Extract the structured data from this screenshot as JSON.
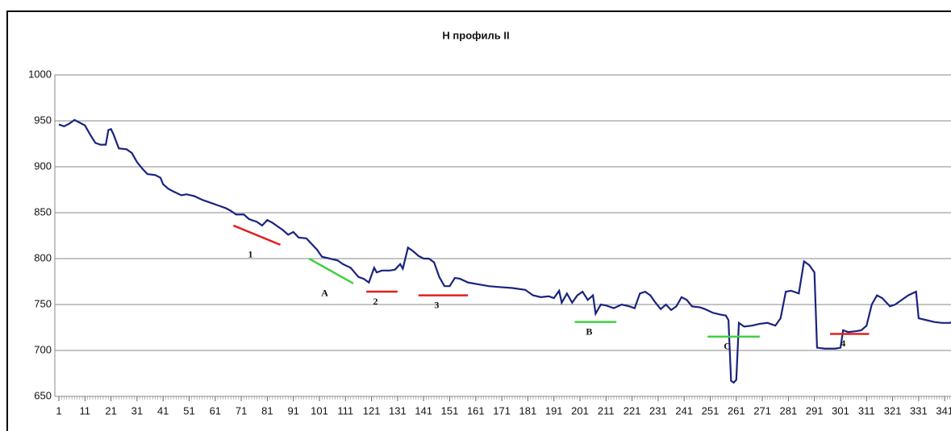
{
  "chart_data": {
    "type": "line",
    "title": "Н профиль II",
    "xlim": [
      1,
      345
    ],
    "xticks": [
      1,
      11,
      21,
      31,
      41,
      51,
      61,
      71,
      81,
      91,
      101,
      111,
      121,
      131,
      141,
      151,
      161,
      171,
      181,
      191,
      201,
      211,
      221,
      231,
      241,
      251,
      261,
      271,
      281,
      291,
      301,
      311,
      321,
      331,
      341
    ],
    "ylim": [
      650,
      1000
    ],
    "yticks": [
      650,
      700,
      750,
      800,
      850,
      900,
      950,
      1000
    ],
    "grid": true,
    "series": [
      {
        "color": "#1a237e",
        "x": [
          1,
          3,
          5,
          7,
          9,
          11,
          13,
          15,
          17,
          19,
          20,
          21,
          22,
          24,
          27,
          29,
          31,
          33,
          35,
          38,
          40,
          41,
          43,
          45,
          48,
          50,
          53,
          56,
          59,
          62,
          65,
          67,
          69,
          72,
          74,
          77,
          79,
          81,
          83,
          85,
          87,
          89,
          91,
          93,
          96,
          98,
          100,
          102,
          105,
          108,
          110,
          113,
          116,
          118,
          120,
          122,
          123,
          125,
          128,
          130,
          132,
          133,
          135,
          137,
          139,
          141,
          143,
          145,
          147,
          149,
          151,
          153,
          155,
          158,
          162,
          166,
          170,
          175,
          180,
          183,
          186,
          189,
          191,
          193,
          194,
          196,
          198,
          200,
          202,
          204,
          206,
          207,
          209,
          211,
          214,
          217,
          220,
          222,
          224,
          226,
          228,
          230,
          232,
          234,
          236,
          238,
          240,
          242,
          244,
          247,
          249,
          252,
          255,
          257,
          258,
          259,
          260,
          261,
          262,
          264,
          267,
          270,
          273,
          276,
          278,
          280,
          282,
          285,
          287,
          289,
          291,
          292,
          295,
          299,
          301,
          302,
          304,
          307,
          309,
          311,
          313,
          315,
          317,
          320,
          322,
          325,
          327,
          330,
          331,
          334,
          337,
          340,
          343,
          345
        ],
        "values": [
          946,
          944,
          947,
          951,
          948,
          945,
          935,
          926,
          924,
          924,
          940,
          941,
          935,
          920,
          919,
          915,
          905,
          898,
          892,
          891,
          888,
          881,
          876,
          873,
          869,
          870,
          868,
          864,
          861,
          858,
          855,
          852,
          848,
          848,
          843,
          840,
          836,
          842,
          839,
          835,
          831,
          826,
          829,
          823,
          822,
          816,
          810,
          802,
          800,
          798,
          794,
          790,
          780,
          778,
          774,
          790,
          785,
          787,
          787,
          788,
          794,
          789,
          812,
          808,
          803,
          800,
          800,
          796,
          780,
          770,
          770,
          779,
          778,
          774,
          772,
          770,
          769,
          768,
          766,
          760,
          758,
          759,
          757,
          765,
          752,
          762,
          752,
          760,
          764,
          755,
          760,
          740,
          750,
          749,
          746,
          750,
          748,
          746,
          762,
          764,
          760,
          752,
          745,
          750,
          744,
          748,
          758,
          755,
          748,
          747,
          745,
          741,
          739,
          738,
          733,
          667,
          665,
          668,
          730,
          726,
          727,
          729,
          730,
          727,
          735,
          764,
          765,
          762,
          797,
          793,
          785,
          703,
          702,
          702,
          703,
          722,
          720,
          721,
          722,
          727,
          750,
          760,
          757,
          748,
          750,
          756,
          760,
          764,
          735,
          733,
          731,
          730,
          730,
          733
        ]
      }
    ],
    "annotations": [
      {
        "label": "1",
        "color": "#e02020",
        "x": [
          68,
          86
        ],
        "y": [
          836,
          815
        ]
      },
      {
        "label": "A",
        "color": "#40d040",
        "x": [
          97,
          114
        ],
        "y": [
          800,
          773
        ]
      },
      {
        "label": "2",
        "color": "#e02020",
        "x": [
          119,
          131
        ],
        "y": [
          764,
          764
        ]
      },
      {
        "label": "3",
        "color": "#e02020",
        "x": [
          139,
          158
        ],
        "y": [
          760,
          760
        ]
      },
      {
        "label": "B",
        "color": "#40d040",
        "x": [
          199,
          215
        ],
        "y": [
          731,
          731
        ]
      },
      {
        "label": "C",
        "color": "#40d040",
        "x": [
          250,
          270
        ],
        "y": [
          715,
          715
        ]
      },
      {
        "label": "4",
        "color": "#e02020",
        "x": [
          297,
          312
        ],
        "y": [
          718,
          718
        ]
      }
    ]
  }
}
